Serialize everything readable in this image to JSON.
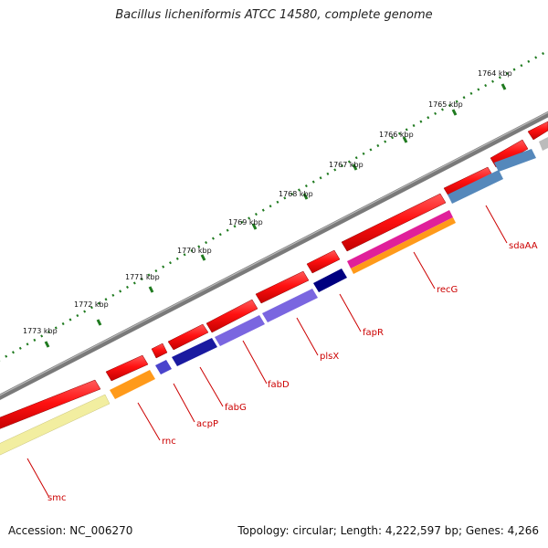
{
  "title": "Bacillus licheniformis ATCC 14580, complete genome",
  "footer": {
    "accession": "Accession: NC_006270",
    "summary": "Topology: circular; Length: 4,222,597 bp; Genes: 4,266"
  },
  "scale_labels": [
    "1764 kbp",
    "1765 kbp",
    "1766 kbp",
    "1767 kbp",
    "1768 kbp",
    "1769 kbp",
    "1770 kbp",
    "1771 kbp",
    "1772 kbp",
    "1773 kbp"
  ],
  "gene_labels": [
    "sdaAA",
    "recG",
    "fapR",
    "plsX",
    "fabD",
    "fabG",
    "acpP",
    "rnc",
    "smc"
  ],
  "colors": {
    "backbone": "#7a7a7a",
    "forward_gene": "#ff1111",
    "tick": "#1f7a1f",
    "label": "#cc0000"
  }
}
